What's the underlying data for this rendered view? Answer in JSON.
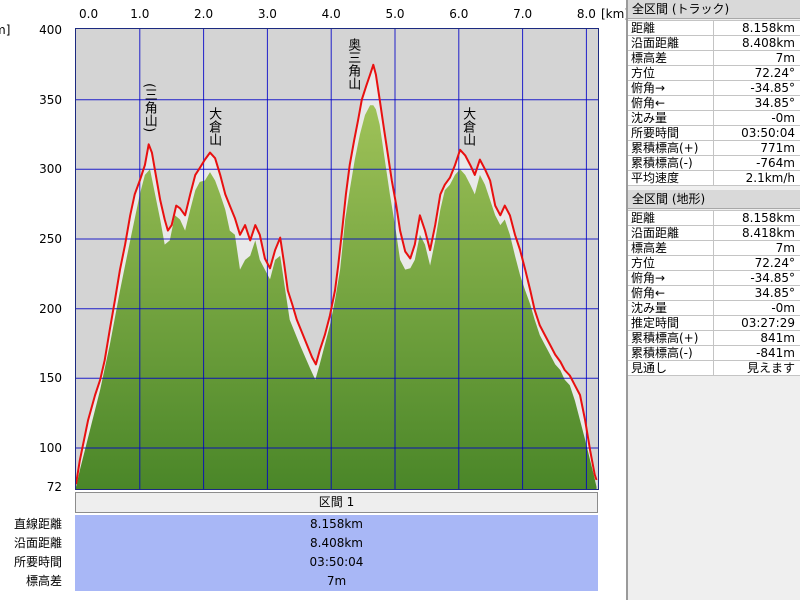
{
  "chart_data": {
    "type": "area",
    "x_unit_label": "[km]",
    "y_unit_label": "m]",
    "x_tick_labels": [
      "0.0",
      "1.0",
      "2.0",
      "3.0",
      "4.0",
      "5.0",
      "6.0",
      "7.0",
      "8.0"
    ],
    "y_tick_labels": [
      "400",
      "350",
      "300",
      "250",
      "200",
      "150",
      "100",
      "72"
    ],
    "xlim": [
      0,
      8.158
    ],
    "ylim": [
      72,
      400
    ],
    "grid": true,
    "series": [
      {
        "type": "area",
        "color": "#6aa23a",
        "points": [
          [
            0.0,
            72
          ],
          [
            0.06,
            84
          ],
          [
            0.22,
            113
          ],
          [
            0.38,
            142
          ],
          [
            0.53,
            174
          ],
          [
            0.69,
            213
          ],
          [
            0.85,
            249
          ],
          [
            1.0,
            282
          ],
          [
            1.08,
            296
          ],
          [
            1.16,
            300
          ],
          [
            1.24,
            282
          ],
          [
            1.32,
            264
          ],
          [
            1.39,
            246
          ],
          [
            1.47,
            249
          ],
          [
            1.55,
            267
          ],
          [
            1.63,
            264
          ],
          [
            1.71,
            256
          ],
          [
            1.79,
            271
          ],
          [
            1.87,
            285
          ],
          [
            1.94,
            291
          ],
          [
            2.02,
            292
          ],
          [
            2.1,
            298
          ],
          [
            2.18,
            292
          ],
          [
            2.26,
            282
          ],
          [
            2.34,
            271
          ],
          [
            2.41,
            256
          ],
          [
            2.49,
            253
          ],
          [
            2.57,
            228
          ],
          [
            2.65,
            235
          ],
          [
            2.73,
            238
          ],
          [
            2.81,
            249
          ],
          [
            2.88,
            235
          ],
          [
            2.96,
            228
          ],
          [
            3.04,
            221
          ],
          [
            3.12,
            235
          ],
          [
            3.2,
            238
          ],
          [
            3.28,
            213
          ],
          [
            3.35,
            192
          ],
          [
            3.51,
            174
          ],
          [
            3.67,
            157
          ],
          [
            3.75,
            149
          ],
          [
            3.82,
            160
          ],
          [
            3.9,
            174
          ],
          [
            3.98,
            188
          ],
          [
            4.06,
            206
          ],
          [
            4.14,
            228
          ],
          [
            4.22,
            264
          ],
          [
            4.29,
            285
          ],
          [
            4.37,
            307
          ],
          [
            4.45,
            325
          ],
          [
            4.53,
            339
          ],
          [
            4.61,
            346
          ],
          [
            4.66,
            346
          ],
          [
            4.7,
            343
          ],
          [
            4.76,
            332
          ],
          [
            4.84,
            307
          ],
          [
            4.92,
            282
          ],
          [
            5.0,
            260
          ],
          [
            5.08,
            235
          ],
          [
            5.16,
            228
          ],
          [
            5.24,
            229
          ],
          [
            5.31,
            235
          ],
          [
            5.39,
            253
          ],
          [
            5.47,
            246
          ],
          [
            5.55,
            231
          ],
          [
            5.63,
            249
          ],
          [
            5.71,
            271
          ],
          [
            5.78,
            285
          ],
          [
            5.86,
            289
          ],
          [
            5.94,
            296
          ],
          [
            6.02,
            300
          ],
          [
            6.1,
            296
          ],
          [
            6.18,
            289
          ],
          [
            6.25,
            282
          ],
          [
            6.33,
            296
          ],
          [
            6.41,
            289
          ],
          [
            6.49,
            278
          ],
          [
            6.57,
            267
          ],
          [
            6.65,
            260
          ],
          [
            6.72,
            264
          ],
          [
            6.8,
            253
          ],
          [
            6.88,
            238
          ],
          [
            6.96,
            224
          ],
          [
            7.04,
            213
          ],
          [
            7.12,
            203
          ],
          [
            7.19,
            192
          ],
          [
            7.27,
            181
          ],
          [
            7.35,
            174
          ],
          [
            7.43,
            167
          ],
          [
            7.51,
            160
          ],
          [
            7.59,
            156
          ],
          [
            7.66,
            149
          ],
          [
            7.74,
            145
          ],
          [
            7.82,
            134
          ],
          [
            7.9,
            120
          ],
          [
            7.98,
            106
          ],
          [
            8.06,
            91
          ],
          [
            8.13,
            78
          ],
          [
            8.158,
            72
          ]
        ]
      },
      {
        "type": "line",
        "color": "#e81010",
        "points": [
          [
            0.0,
            74
          ],
          [
            0.06,
            91
          ],
          [
            0.19,
            120
          ],
          [
            0.3,
            138
          ],
          [
            0.38,
            149
          ],
          [
            0.45,
            163
          ],
          [
            0.53,
            185
          ],
          [
            0.61,
            206
          ],
          [
            0.69,
            228
          ],
          [
            0.77,
            246
          ],
          [
            0.85,
            267
          ],
          [
            0.92,
            282
          ],
          [
            1.0,
            292
          ],
          [
            1.08,
            303
          ],
          [
            1.14,
            318
          ],
          [
            1.19,
            312
          ],
          [
            1.25,
            296
          ],
          [
            1.32,
            278
          ],
          [
            1.39,
            264
          ],
          [
            1.44,
            256
          ],
          [
            1.5,
            260
          ],
          [
            1.57,
            274
          ],
          [
            1.63,
            272
          ],
          [
            1.71,
            267
          ],
          [
            1.79,
            282
          ],
          [
            1.87,
            296
          ],
          [
            1.94,
            301
          ],
          [
            2.02,
            307
          ],
          [
            2.1,
            312
          ],
          [
            2.18,
            308
          ],
          [
            2.26,
            296
          ],
          [
            2.34,
            282
          ],
          [
            2.41,
            274
          ],
          [
            2.49,
            265
          ],
          [
            2.57,
            253
          ],
          [
            2.65,
            260
          ],
          [
            2.73,
            249
          ],
          [
            2.81,
            260
          ],
          [
            2.88,
            253
          ],
          [
            2.96,
            236
          ],
          [
            3.04,
            229
          ],
          [
            3.12,
            242
          ],
          [
            3.2,
            251
          ],
          [
            3.26,
            233
          ],
          [
            3.32,
            213
          ],
          [
            3.39,
            203
          ],
          [
            3.46,
            192
          ],
          [
            3.54,
            183
          ],
          [
            3.62,
            174
          ],
          [
            3.7,
            165
          ],
          [
            3.76,
            160
          ],
          [
            3.82,
            170
          ],
          [
            3.9,
            181
          ],
          [
            3.98,
            195
          ],
          [
            4.06,
            213
          ],
          [
            4.11,
            231
          ],
          [
            4.17,
            256
          ],
          [
            4.23,
            282
          ],
          [
            4.29,
            303
          ],
          [
            4.36,
            321
          ],
          [
            4.42,
            335
          ],
          [
            4.48,
            350
          ],
          [
            4.55,
            360
          ],
          [
            4.61,
            368
          ],
          [
            4.66,
            375
          ],
          [
            4.7,
            368
          ],
          [
            4.76,
            350
          ],
          [
            4.83,
            328
          ],
          [
            4.89,
            310
          ],
          [
            4.95,
            292
          ],
          [
            5.02,
            274
          ],
          [
            5.08,
            256
          ],
          [
            5.16,
            241
          ],
          [
            5.24,
            236
          ],
          [
            5.31,
            246
          ],
          [
            5.39,
            267
          ],
          [
            5.47,
            256
          ],
          [
            5.55,
            242
          ],
          [
            5.63,
            260
          ],
          [
            5.71,
            282
          ],
          [
            5.78,
            289
          ],
          [
            5.86,
            294
          ],
          [
            5.94,
            303
          ],
          [
            6.02,
            314
          ],
          [
            6.1,
            310
          ],
          [
            6.18,
            303
          ],
          [
            6.25,
            296
          ],
          [
            6.33,
            307
          ],
          [
            6.41,
            300
          ],
          [
            6.49,
            292
          ],
          [
            6.57,
            274
          ],
          [
            6.65,
            267
          ],
          [
            6.72,
            274
          ],
          [
            6.8,
            267
          ],
          [
            6.88,
            253
          ],
          [
            6.96,
            242
          ],
          [
            7.04,
            228
          ],
          [
            7.12,
            213
          ],
          [
            7.19,
            199
          ],
          [
            7.27,
            188
          ],
          [
            7.35,
            181
          ],
          [
            7.43,
            174
          ],
          [
            7.51,
            167
          ],
          [
            7.59,
            162
          ],
          [
            7.66,
            156
          ],
          [
            7.74,
            152
          ],
          [
            7.82,
            145
          ],
          [
            7.9,
            138
          ],
          [
            7.98,
            120
          ],
          [
            8.06,
            98
          ],
          [
            8.13,
            81
          ],
          [
            8.158,
            77
          ]
        ]
      }
    ],
    "annotations": [
      {
        "text": "(三角山)",
        "x": 1.14
      },
      {
        "text": "大倉山",
        "x": 2.15
      },
      {
        "text": "奥三角山",
        "x": 4.33
      },
      {
        "text": "大倉山",
        "x": 6.13
      }
    ]
  },
  "section": {
    "header": "区間 1",
    "rows": [
      {
        "label": "直線距離",
        "value": "8.158km"
      },
      {
        "label": "沿面距離",
        "value": "8.408km"
      },
      {
        "label": "所要時間",
        "value": "03:50:04"
      },
      {
        "label": "標高差",
        "value": "7m"
      }
    ]
  },
  "track_summary": {
    "title": "全区間 (トラック)",
    "rows": [
      {
        "label": "距離",
        "value": "8.158km"
      },
      {
        "label": "沿面距離",
        "value": "8.408km"
      },
      {
        "label": "標高差",
        "value": "7m"
      },
      {
        "label": "方位",
        "value": "72.24°"
      },
      {
        "label": "俯角→",
        "value": "-34.85°"
      },
      {
        "label": "俯角←",
        "value": "34.85°"
      },
      {
        "label": "沈み量",
        "value": "-0m"
      },
      {
        "label": "所要時間",
        "value": "03:50:04"
      },
      {
        "label": "累積標高(+)",
        "value": "771m"
      },
      {
        "label": "累積標高(-)",
        "value": "-764m"
      },
      {
        "label": "平均速度",
        "value": "2.1km/h"
      }
    ]
  },
  "terrain_summary": {
    "title": "全区間 (地形)",
    "rows": [
      {
        "label": "距離",
        "value": "8.158km"
      },
      {
        "label": "沿面距離",
        "value": "8.418km"
      },
      {
        "label": "標高差",
        "value": "7m"
      },
      {
        "label": "方位",
        "value": "72.24°"
      },
      {
        "label": "俯角→",
        "value": "-34.85°"
      },
      {
        "label": "俯角←",
        "value": "34.85°"
      },
      {
        "label": "沈み量",
        "value": "-0m"
      },
      {
        "label": "推定時間",
        "value": "03:27:29"
      },
      {
        "label": "累積標高(+)",
        "value": "841m"
      },
      {
        "label": "累積標高(-)",
        "value": "-841m"
      },
      {
        "label": "見通し",
        "value": "見えます"
      }
    ]
  },
  "colors": {
    "plot_background": "#d4d4d4",
    "plot_frame": "#1c2a80",
    "grid": "#0000c8",
    "track_line": "#e81010",
    "track_fill": "#e9e9e9",
    "terrain_top": "#a9c95e",
    "terrain_bottom": "#4a8628",
    "section_rows": "#a8b7f6"
  }
}
